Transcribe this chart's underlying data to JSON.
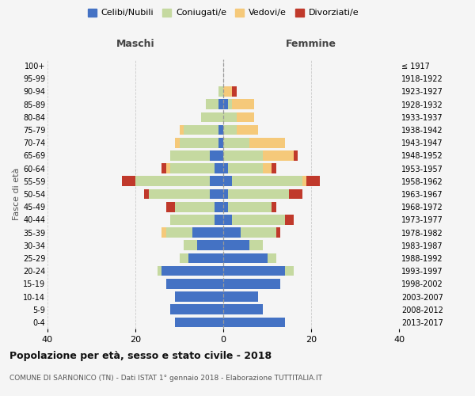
{
  "age_groups": [
    "0-4",
    "5-9",
    "10-14",
    "15-19",
    "20-24",
    "25-29",
    "30-34",
    "35-39",
    "40-44",
    "45-49",
    "50-54",
    "55-59",
    "60-64",
    "65-69",
    "70-74",
    "75-79",
    "80-84",
    "85-89",
    "90-94",
    "95-99",
    "100+"
  ],
  "birth_years": [
    "2013-2017",
    "2008-2012",
    "2003-2007",
    "1998-2002",
    "1993-1997",
    "1988-1992",
    "1983-1987",
    "1978-1982",
    "1973-1977",
    "1968-1972",
    "1963-1967",
    "1958-1962",
    "1953-1957",
    "1948-1952",
    "1943-1947",
    "1938-1942",
    "1933-1937",
    "1928-1932",
    "1923-1927",
    "1918-1922",
    "≤ 1917"
  ],
  "maschi": {
    "celibi": [
      11,
      12,
      11,
      13,
      14,
      8,
      6,
      7,
      2,
      2,
      3,
      3,
      2,
      3,
      1,
      1,
      0,
      1,
      0,
      0,
      0
    ],
    "coniugati": [
      0,
      0,
      0,
      0,
      1,
      2,
      3,
      6,
      10,
      9,
      14,
      17,
      10,
      9,
      9,
      8,
      5,
      3,
      1,
      0,
      0
    ],
    "vedovi": [
      0,
      0,
      0,
      0,
      0,
      0,
      0,
      1,
      0,
      0,
      0,
      0,
      1,
      0,
      1,
      1,
      0,
      0,
      0,
      0,
      0
    ],
    "divorziati": [
      0,
      0,
      0,
      0,
      0,
      0,
      0,
      0,
      0,
      2,
      1,
      3,
      1,
      0,
      0,
      0,
      0,
      0,
      0,
      0,
      0
    ]
  },
  "femmine": {
    "nubili": [
      14,
      9,
      8,
      13,
      14,
      10,
      6,
      4,
      2,
      1,
      1,
      2,
      1,
      0,
      0,
      0,
      0,
      1,
      0,
      0,
      0
    ],
    "coniugate": [
      0,
      0,
      0,
      0,
      2,
      2,
      3,
      8,
      12,
      10,
      14,
      16,
      8,
      9,
      6,
      3,
      3,
      1,
      0,
      0,
      0
    ],
    "vedove": [
      0,
      0,
      0,
      0,
      0,
      0,
      0,
      0,
      0,
      0,
      0,
      1,
      2,
      7,
      8,
      5,
      4,
      5,
      2,
      0,
      0
    ],
    "divorziate": [
      0,
      0,
      0,
      0,
      0,
      0,
      0,
      1,
      2,
      1,
      3,
      3,
      1,
      1,
      0,
      0,
      0,
      0,
      1,
      0,
      0
    ]
  },
  "colors": {
    "celibi": "#4472c4",
    "coniugati": "#c5d9a0",
    "vedovi": "#f5c97a",
    "divorziati": "#c0392b"
  },
  "xlim": 40,
  "title": "Popolazione per età, sesso e stato civile - 2018",
  "subtitle": "COMUNE DI SARNONICO (TN) - Dati ISTAT 1° gennaio 2018 - Elaborazione TUTTITALIA.IT",
  "ylabel_left": "Fasce di età",
  "xlabel_maschi": "Maschi",
  "xlabel_femmine": "Femmine",
  "legend_labels": [
    "Celibi/Nubili",
    "Coniugati/e",
    "Vedovi/e",
    "Divorziati/e"
  ]
}
